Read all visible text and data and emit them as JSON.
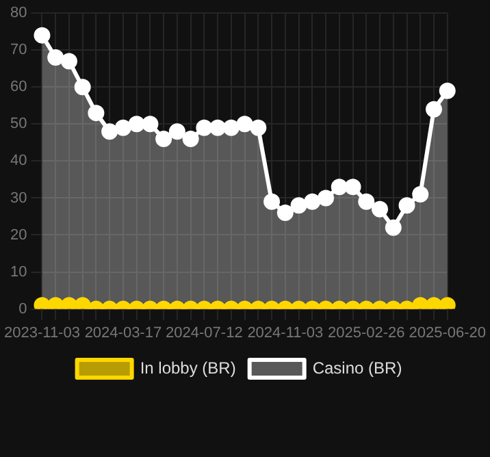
{
  "chart_data": {
    "type": "area",
    "categories": [
      "2023-11-03",
      null,
      null,
      null,
      null,
      null,
      "2024-03-17",
      null,
      null,
      null,
      null,
      null,
      "2024-07-12",
      null,
      null,
      null,
      null,
      null,
      "2024-11-03",
      null,
      null,
      null,
      null,
      null,
      "2025-02-26",
      null,
      null,
      null,
      null,
      null,
      "2025-06-20"
    ],
    "series": [
      {
        "name": "In lobby (BR)",
        "color": "#ffd700",
        "values": [
          1,
          1,
          1,
          1,
          0,
          0,
          0,
          0,
          0,
          0,
          0,
          0,
          0,
          0,
          0,
          0,
          0,
          0,
          0,
          0,
          0,
          0,
          0,
          0,
          0,
          0,
          0,
          0,
          1,
          1,
          1
        ]
      },
      {
        "name": "Casino (BR)",
        "color": "#ffffff",
        "values": [
          74,
          68,
          67,
          60,
          53,
          48,
          49,
          50,
          50,
          46,
          48,
          46,
          49,
          49,
          49,
          50,
          49,
          29,
          26,
          28,
          29,
          30,
          33,
          33,
          29,
          27,
          22,
          28,
          31,
          54,
          59
        ]
      }
    ],
    "ylim": [
      0,
      80
    ],
    "yticks": [
      0,
      10,
      20,
      30,
      40,
      50,
      60,
      70,
      80
    ],
    "grid": true,
    "legend": "bottom",
    "marker": "circle",
    "line_style": "solid"
  }
}
